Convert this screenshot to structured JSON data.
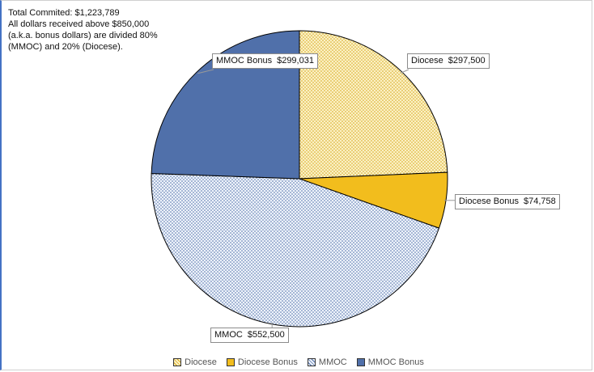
{
  "notes": [
    "Total Commited: $1,223,789",
    "All dollars received above $850,000",
    "(a.k.a. bonus dollars) are divided 80%",
    "(MMOC) and 20% (Diocese)."
  ],
  "colors": {
    "diocese": "#f5e39a",
    "diocese_bonus": "#f2bd1d",
    "mmoc": "#c9d8ee",
    "mmoc_bonus": "#5070aa",
    "frame_accent": "#4472c4"
  },
  "chart_data": {
    "type": "pie",
    "title": "",
    "start_angle_deg": 0,
    "direction": "clockwise",
    "legend_position": "bottom",
    "slices": [
      {
        "key": "diocese",
        "name": "Diocese",
        "value": 297500,
        "label": "$297,500",
        "pattern": "dotted"
      },
      {
        "key": "diocese_bonus",
        "name": "Diocese Bonus",
        "value": 74758,
        "label": "$74,758",
        "pattern": "solid"
      },
      {
        "key": "mmoc",
        "name": "MMOC",
        "value": 552500,
        "label": "$552,500",
        "pattern": "dotted"
      },
      {
        "key": "mmoc_bonus",
        "name": "MMOC Bonus",
        "value": 299031,
        "label": "$299,031",
        "pattern": "solid"
      }
    ]
  }
}
